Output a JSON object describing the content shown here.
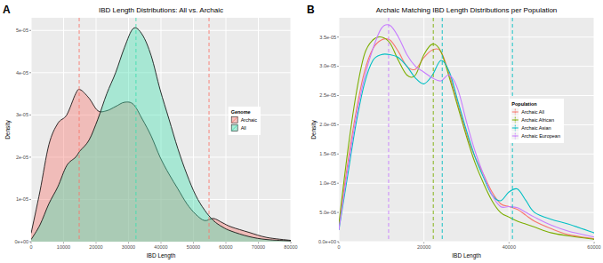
{
  "chart_data": [
    {
      "type": "area",
      "panel_label": "A",
      "title": "IBD Length Distributions: All vs. Archaic",
      "x_label": "IBD Length",
      "y_label": "Density",
      "legend_title": "Genome",
      "x": [
        0,
        2740,
        5480,
        8220,
        10960,
        13700,
        15070,
        17810,
        20550,
        23290,
        26030,
        28770,
        31510,
        34250,
        36990,
        39730,
        42470,
        45210,
        47950,
        50680,
        53420,
        56160,
        58900,
        61640,
        67120,
        72600,
        80000
      ],
      "series": [
        {
          "name": "Archaic",
          "color": "#F8766D",
          "vlines": [
            14800,
            54800
          ],
          "values": [
            2e-06,
            1.2e-05,
            2.3e-05,
            2.8e-05,
            3e-05,
            3.5e-05,
            3.6e-05,
            3.4e-05,
            3.1e-05,
            3.1e-05,
            3.2e-05,
            3.3e-05,
            3.25e-05,
            2.9e-05,
            2.5e-05,
            2e-05,
            1.6e-05,
            1.25e-05,
            9e-06,
            6.5e-06,
            5e-06,
            5.5e-06,
            4.5e-06,
            3.5e-06,
            2.2e-06,
            1e-06,
            3e-07
          ]
        },
        {
          "name": "All",
          "color": "#40E0B0",
          "vlines": [
            32300
          ],
          "values": [
            5e-07,
            4e-06,
            9e-06,
            1.3e-05,
            1.8e-05,
            2e-05,
            2.15e-05,
            2.4e-05,
            2.9e-05,
            3.5e-05,
            4e-05,
            4.6e-05,
            5.05e-05,
            4.9e-05,
            4.4e-05,
            3.6e-05,
            2.9e-05,
            2.2e-05,
            1.6e-05,
            1.1e-05,
            7.5e-06,
            5e-06,
            3.5e-06,
            2.5e-06,
            1.2e-06,
            5e-07,
            2e-07
          ]
        }
      ],
      "xlim": [
        0,
        80000
      ],
      "ylim": [
        0,
        5.3e-05
      ],
      "xticks": [
        0,
        10000,
        20000,
        30000,
        40000,
        50000,
        60000,
        70000,
        80000
      ],
      "yticks": [
        {
          "value": 0,
          "label": "0e+00"
        },
        {
          "value": 1e-05,
          "label": "1e-05"
        },
        {
          "value": 2e-05,
          "label": "2e-05"
        },
        {
          "value": 3e-05,
          "label": "3e-05"
        },
        {
          "value": 4e-05,
          "label": "4e-05"
        },
        {
          "value": 5e-05,
          "label": "5e-05"
        }
      ],
      "grid": true,
      "legend": "right"
    },
    {
      "type": "line",
      "panel_label": "B",
      "title": "Archaic Matching IBD Length Distributions per Population",
      "x_label": "IBD Length",
      "y_label": "Density",
      "legend_title": "Population",
      "x": [
        0,
        2000,
        4000,
        6000,
        8000,
        10000,
        12000,
        14000,
        16000,
        18000,
        20000,
        22000,
        24000,
        26000,
        28000,
        30000,
        32000,
        34000,
        36000,
        38000,
        40000,
        42000,
        44000,
        46000,
        50000,
        54000,
        60000
      ],
      "series": [
        {
          "name": "Archaic All",
          "color": "#F8766D",
          "values": [
            2.5e-06,
            1.3e-05,
            2.2e-05,
            2.9e-05,
            3.3e-05,
            3.45e-05,
            3.45e-05,
            3.25e-05,
            3e-05,
            2.95e-05,
            3.15e-05,
            3.28e-05,
            3.25e-05,
            2.85e-05,
            2.35e-05,
            1.85e-05,
            1.45e-05,
            1.15e-05,
            8.5e-06,
            6.5e-06,
            6e-06,
            5.5e-06,
            4.5e-06,
            3.5e-06,
            2.2e-06,
            1.2e-06,
            5e-07
          ]
        },
        {
          "name": "Archaic African",
          "color": "#7CAE00",
          "vlines": [
            22200
          ],
          "values": [
            3e-06,
            1.5e-05,
            2.5e-05,
            3.2e-05,
            3.45e-05,
            3.5e-05,
            3.4e-05,
            3.1e-05,
            2.85e-05,
            2.85e-05,
            3.2e-05,
            3.38e-05,
            3.25e-05,
            2.8e-05,
            2.3e-05,
            1.8e-05,
            1.35e-05,
            1e-05,
            7e-06,
            5e-06,
            4.2e-06,
            3.5e-06,
            3e-06,
            2.5e-06,
            1.5e-06,
            1e-06,
            4e-07
          ]
        },
        {
          "name": "Archaic Asian",
          "color": "#00BFC4",
          "vlines": [
            24300,
            40800
          ],
          "values": [
            2e-06,
            1.1e-05,
            2e-05,
            2.7e-05,
            3.1e-05,
            3.2e-05,
            3.2e-05,
            3.15e-05,
            3e-05,
            2.8e-05,
            2.7e-05,
            2.85e-05,
            3.1e-05,
            2.9e-05,
            2.4e-05,
            1.9e-05,
            1.45e-05,
            1.1e-05,
            8e-06,
            7e-06,
            8.5e-06,
            9e-06,
            7e-06,
            5e-06,
            3.8e-06,
            3e-06,
            1.5e-06
          ]
        },
        {
          "name": "Archaic European",
          "color": "#C77CFF",
          "vlines": [
            11700
          ],
          "values": [
            2e-06,
            1.2e-05,
            2.1e-05,
            2.8e-05,
            3.3e-05,
            3.65e-05,
            3.7e-05,
            3.5e-05,
            3.2e-05,
            3e-05,
            2.9e-05,
            2.8e-05,
            2.75e-05,
            2.85e-05,
            2.6e-05,
            2.05e-05,
            1.55e-05,
            1.15e-05,
            8e-06,
            6e-06,
            6e-06,
            5.8e-06,
            5e-06,
            4.2e-06,
            2.8e-06,
            1.8e-06,
            8e-07
          ]
        }
      ],
      "xlim": [
        0,
        60000
      ],
      "ylim": [
        0,
        3.83e-05
      ],
      "xticks": [
        0,
        20000,
        40000,
        60000
      ],
      "yticks": [
        {
          "value": 0,
          "label": "0.0e+00"
        },
        {
          "value": 5e-06,
          "label": "5.0e-06"
        },
        {
          "value": 1e-05,
          "label": "1.0e-05"
        },
        {
          "value": 1.5e-05,
          "label": "1.5e-05"
        },
        {
          "value": 2e-05,
          "label": "2.0e-05"
        },
        {
          "value": 2.5e-05,
          "label": "2.5e-05"
        },
        {
          "value": 3e-05,
          "label": "3.0e-05"
        },
        {
          "value": 3.5e-05,
          "label": "3.5e-05"
        }
      ],
      "grid": true,
      "legend": "right"
    }
  ]
}
